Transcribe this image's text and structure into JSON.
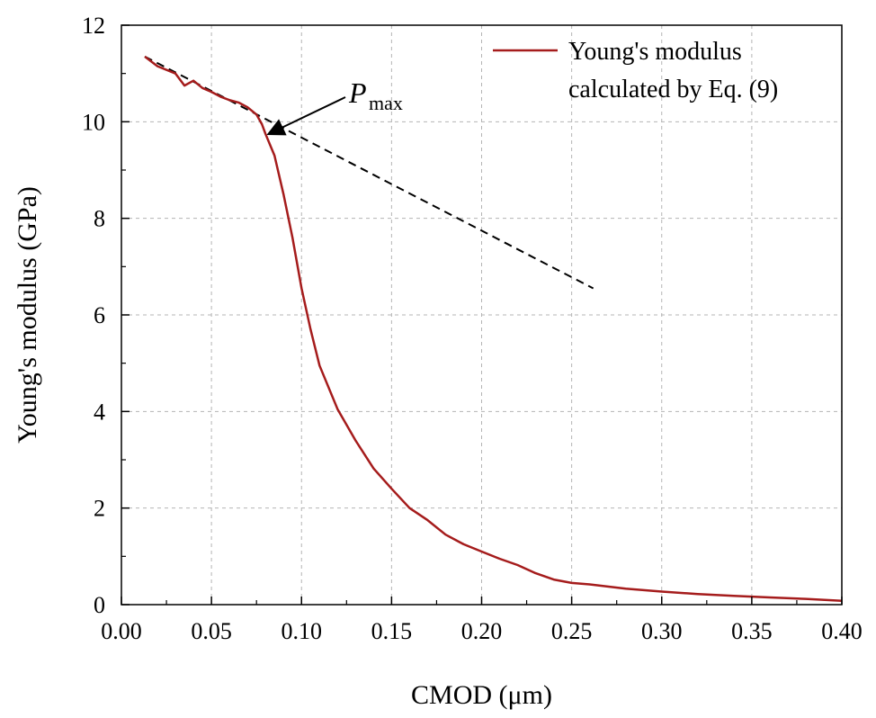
{
  "chart_data": {
    "type": "line",
    "title": "",
    "xlabel": "CMOD (μm)",
    "ylabel": "Young's modulus (GPa)",
    "xlim": [
      0,
      0.4
    ],
    "ylim": [
      0,
      12
    ],
    "xticks": [
      "0.00",
      "0.05",
      "0.10",
      "0.15",
      "0.20",
      "0.25",
      "0.30",
      "0.35",
      "0.40"
    ],
    "yticks": [
      "0",
      "2",
      "4",
      "6",
      "8",
      "10",
      "12"
    ],
    "grid": true,
    "legend_position": "top-right",
    "series": [
      {
        "name": "Young's modulus calculated by Eq. (9)",
        "color": "#a51c1c",
        "x": [
          0.013,
          0.02,
          0.03,
          0.035,
          0.04,
          0.045,
          0.05,
          0.055,
          0.06,
          0.065,
          0.07,
          0.075,
          0.078,
          0.08,
          0.085,
          0.09,
          0.095,
          0.1,
          0.105,
          0.11,
          0.12,
          0.13,
          0.14,
          0.15,
          0.16,
          0.17,
          0.18,
          0.19,
          0.2,
          0.21,
          0.22,
          0.23,
          0.24,
          0.25,
          0.26,
          0.28,
          0.3,
          0.32,
          0.34,
          0.36,
          0.38,
          0.4
        ],
        "y": [
          11.35,
          11.15,
          11.0,
          10.75,
          10.85,
          10.7,
          10.62,
          10.52,
          10.45,
          10.4,
          10.3,
          10.15,
          9.95,
          9.75,
          9.3,
          8.5,
          7.6,
          6.55,
          5.7,
          4.95,
          4.05,
          3.4,
          2.82,
          2.4,
          2.0,
          1.75,
          1.45,
          1.25,
          1.1,
          0.95,
          0.82,
          0.65,
          0.52,
          0.45,
          0.42,
          0.33,
          0.27,
          0.22,
          0.18,
          0.15,
          0.12,
          0.08
        ]
      }
    ],
    "reference_line": {
      "style": "dashed",
      "color": "#000000",
      "x": [
        0.013,
        0.262
      ],
      "y": [
        11.35,
        6.55
      ]
    },
    "annotations": [
      {
        "text": "P",
        "subscript": "max",
        "arrow_to": {
          "x": 0.08,
          "y": 9.78
        }
      }
    ],
    "legend_label_lines": [
      "Young's modulus",
      "calculated by Eq. (9)"
    ]
  }
}
